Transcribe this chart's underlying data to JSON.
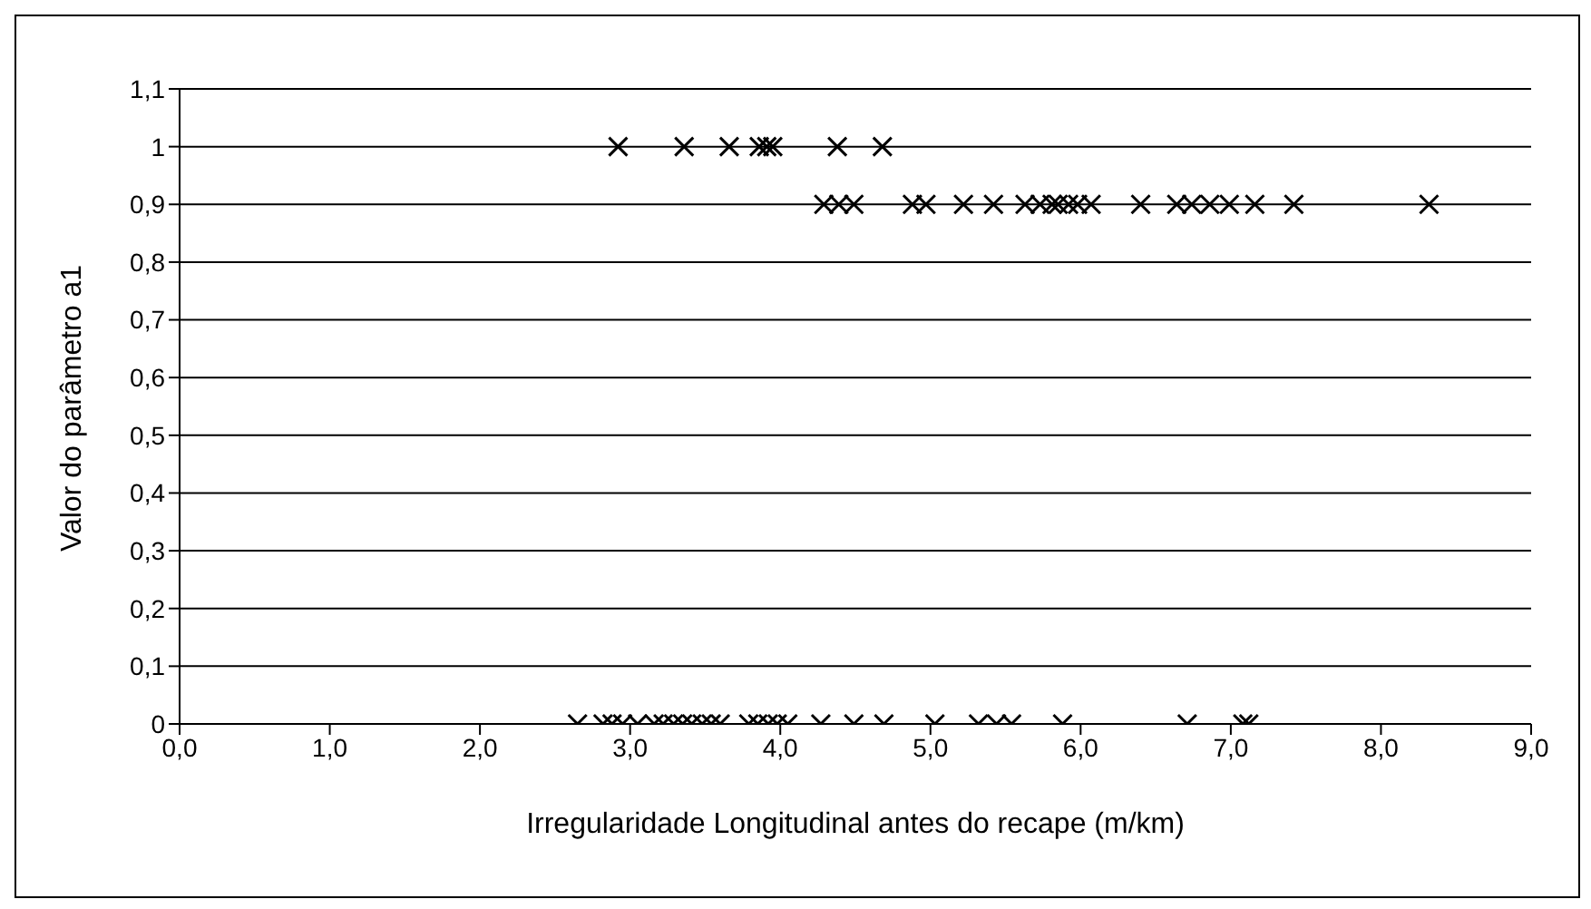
{
  "chart_data": {
    "type": "scatter",
    "xlabel": "Irregularidade Longitudinal antes do recape (m/km)",
    "ylabel": "Valor do parâmetro a1",
    "marker": "cross",
    "grid": "y",
    "legend": false,
    "xlim": [
      0,
      9
    ],
    "ylim": [
      0,
      1.1
    ],
    "xticks": [
      {
        "value": 0,
        "label": "0,0"
      },
      {
        "value": 1,
        "label": "1,0"
      },
      {
        "value": 2,
        "label": "2,0"
      },
      {
        "value": 3,
        "label": "3,0"
      },
      {
        "value": 4,
        "label": "4,0"
      },
      {
        "value": 5,
        "label": "5,0"
      },
      {
        "value": 6,
        "label": "6,0"
      },
      {
        "value": 7,
        "label": "7,0"
      },
      {
        "value": 8,
        "label": "8,0"
      },
      {
        "value": 9,
        "label": "9,0"
      }
    ],
    "yticks": [
      0,
      {
        "value": 0.1,
        "label": "0,1"
      },
      {
        "value": 0.2,
        "label": "0,2"
      },
      {
        "value": 0.3,
        "label": "0,3"
      },
      {
        "value": 0.4,
        "label": "0,4"
      },
      {
        "value": 0.5,
        "label": "0,5"
      },
      {
        "value": 0.6,
        "label": "0,6"
      },
      {
        "value": 0.7,
        "label": "0,7"
      },
      {
        "value": 0.8,
        "label": "0,8"
      },
      {
        "value": 0.9,
        "label": "0,9"
      },
      1,
      {
        "value": 1.1,
        "label": "1,1"
      }
    ],
    "series": [
      {
        "color": "#000000",
        "x": [
          2.92,
          3.36,
          3.66,
          3.86,
          3.91,
          3.95,
          4.38,
          4.68
        ],
        "values": [
          1,
          1,
          1,
          1,
          1,
          1,
          1,
          1
        ]
      },
      {
        "color": "#000000",
        "x": [
          4.29,
          4.39,
          4.49,
          4.88,
          4.97,
          5.22,
          5.42,
          5.63,
          5.73,
          5.81,
          5.85,
          5.92,
          5.98,
          6.07,
          6.4,
          6.64,
          6.74,
          6.86,
          6.99,
          7.16,
          7.42,
          8.32
        ],
        "values": [
          0.9,
          0.9,
          0.9,
          0.9,
          0.9,
          0.9,
          0.9,
          0.9,
          0.9,
          0.9,
          0.9,
          0.9,
          0.9,
          0.9,
          0.9,
          0.9,
          0.9,
          0.9,
          0.9,
          0.9,
          0.9,
          0.9
        ]
      },
      {
        "color": "#000000",
        "x": [
          2.65,
          2.82,
          2.88,
          2.95,
          3.05,
          3.16,
          3.22,
          3.29,
          3.35,
          3.41,
          3.48,
          3.54,
          3.6,
          3.79,
          3.85,
          3.92,
          3.98,
          4.05,
          4.27,
          4.49,
          4.69,
          5.03,
          5.32,
          5.44,
          5.54,
          5.88,
          6.71,
          7.08,
          7.12
        ],
        "values": [
          0,
          0,
          0,
          0,
          0,
          0,
          0,
          0,
          0,
          0,
          0,
          0,
          0,
          0,
          0,
          0,
          0,
          0,
          0,
          0,
          0,
          0,
          0,
          0,
          0,
          0,
          0,
          0,
          0
        ]
      }
    ]
  }
}
